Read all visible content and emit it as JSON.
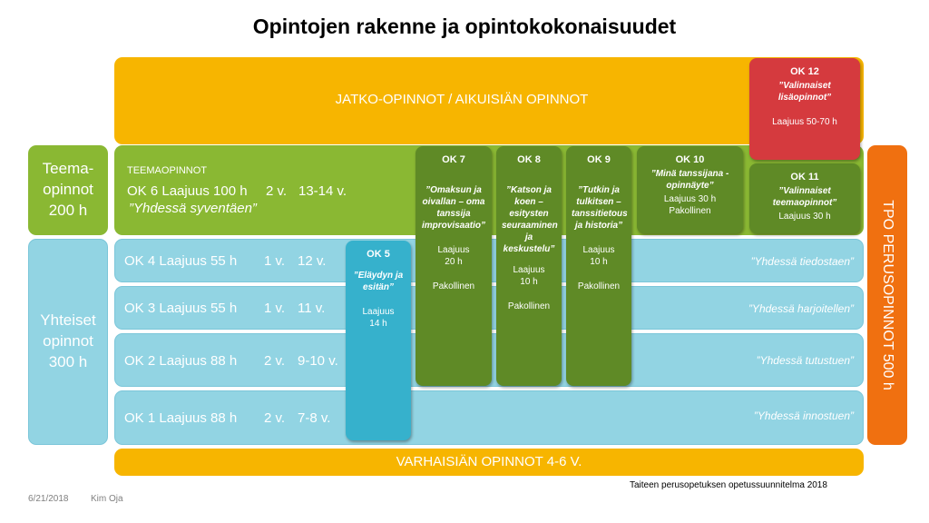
{
  "title": "Opintojen rakenne ja opintokokonaisuudet",
  "colors": {
    "orange_band": "#f7b500",
    "green": "#8ab833",
    "dark_green": "#5f8a26",
    "light_blue": "#92d4e3",
    "blue_card": "#36b1cc",
    "red": "#d53a3e",
    "tpo_orange": "#f07010"
  },
  "jatko": {
    "label": "JATKO-OPINNOT / AIKUISIÄN OPINNOT"
  },
  "teemaopinnot_side": {
    "label": "Teema-\nopinnot\n200 h"
  },
  "yhteiset_side": {
    "label": "Yhteiset\nopinnot\n300 h"
  },
  "tpo": {
    "label": "TPO PERUSOPINNOT 500 h"
  },
  "teema_band": {
    "small_label": "TEEMAOPINNOT",
    "ok": "OK 6 Laajuus 100 h",
    "years": "2 v.",
    "age": "13-14 v.",
    "motto": "”Yhdessä syventäen”"
  },
  "rows": [
    {
      "ok": "OK 4 Laajuus 55 h",
      "years": "1 v.",
      "age": "12 v.",
      "motto": "”Yhdessä tiedostaen”"
    },
    {
      "ok": "OK 3 Laajuus 55 h",
      "years": "1 v.",
      "age": "11 v.",
      "motto": "”Yhdessä harjoitellen”"
    },
    {
      "ok": "OK 2 Laajuus 88 h",
      "years": "2 v.",
      "age": "9-10 v.",
      "motto": "”Yhdessä tutustuen”"
    },
    {
      "ok": "OK 1 Laajuus 88 h",
      "years": "2 v.",
      "age": "7-8 v.",
      "motto": "”Yhdessä innostuen”"
    }
  ],
  "cards": {
    "ok5": {
      "title": "OK 5",
      "subtitle": "”Eläydyn ja\nesitän”",
      "duration": "Laajuus\n14 h"
    },
    "ok7": {
      "title": "OK 7",
      "subtitle": "”Omaksun ja\noivallan – oma\ntanssija\nimprovisaatio”",
      "duration": "Laajuus\n20 h",
      "mandatory": "Pakollinen"
    },
    "ok8": {
      "title": "OK 8",
      "subtitle": "”Katson ja\nkoen –\nesitysten\nseuraaminen\nja\nkeskustelu”",
      "duration": "Laajuus\n10 h",
      "mandatory": "Pakollinen"
    },
    "ok9": {
      "title": "OK 9",
      "subtitle": "”Tutkin ja\ntulkitsen –\ntanssitietous\nja historia”",
      "duration": "Laajuus\n10 h",
      "mandatory": "Pakollinen"
    },
    "ok10": {
      "title": "OK 10",
      "subtitle": "”Minä tanssijana -\nopinnäyte”",
      "duration": "Laajuus 30 h",
      "mandatory": "Pakollinen"
    },
    "ok11": {
      "title": "OK 11",
      "subtitle": "”Valinnaiset\nteemaopinnot”",
      "duration": "Laajuus 30 h"
    },
    "ok12": {
      "title": "OK 12",
      "subtitle": "”Valinnaiset\nlisäopinnot”",
      "duration": "Laajuus 50-70 h"
    }
  },
  "varhaisian": {
    "label": "VARHAISIÄN OPINNOT 4-6 V."
  },
  "source": "Taiteen perusopetuksen opetussuunnitelma 2018",
  "footer": {
    "date": "6/21/2018",
    "author": "Kim Oja"
  }
}
